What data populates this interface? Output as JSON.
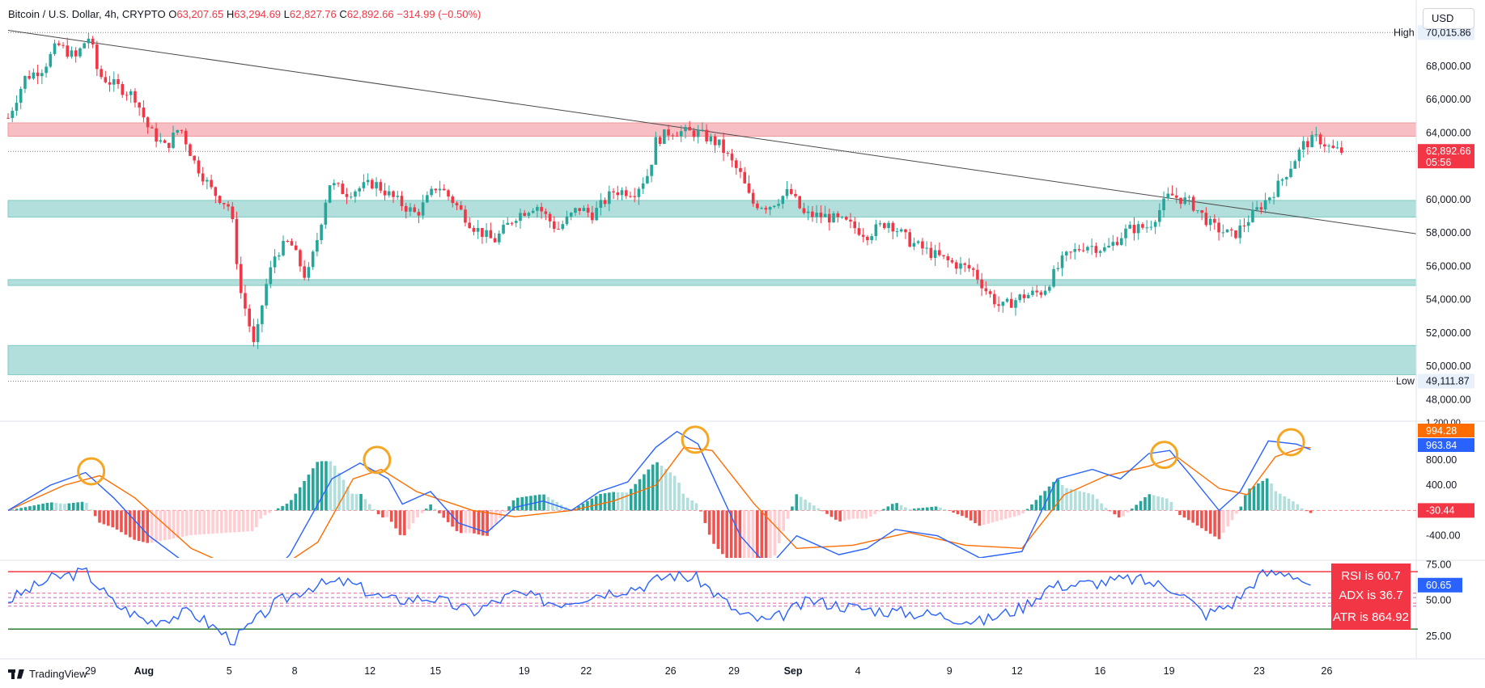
{
  "header": {
    "symbol": "Bitcoin / U.S. Dollar, 4h, CRYPTO",
    "open_label": "O",
    "open": "63,207.65",
    "high_label": "H",
    "high": "63,294.69",
    "low_label": "L",
    "low": "62,827.76",
    "close_label": "C",
    "close": "62,892.66",
    "change": "−314.99 (−0.50%)"
  },
  "currency_button": "USD",
  "watermark": "TradingView",
  "price_labels": {
    "high_text": "High",
    "high_value": "70,015.86",
    "low_text": "Low",
    "low_value": "49,111.87",
    "last_price": "62,892.66",
    "countdown": "05:56"
  },
  "indicator_labels": {
    "macd_signal": "994.28",
    "macd_line": "963.84",
    "macd_hist": "-30.44",
    "rsi_value": "60.65",
    "rsi_box": "RSI is 60.7",
    "adx_box": "ADX is 36.7",
    "atr_box": "ATR is 864.92"
  },
  "colors": {
    "up": "#26a69a",
    "down": "#f23645",
    "resistance_zone": "#f7bfc4",
    "support_zone": "#b2dfdb",
    "macd_line": "#2962ff",
    "signal_line": "#ff6d00",
    "rsi_line": "#2962ff",
    "highlight_circle": "#f5a623"
  },
  "chart_data": [
    {
      "type": "candlestick",
      "title": "Bitcoin / U.S. Dollar, 4h, CRYPTO",
      "x_ticks": [
        "29",
        "Aug",
        "5",
        "8",
        "12",
        "15",
        "19",
        "22",
        "26",
        "29",
        "Sep",
        "4",
        "9",
        "12",
        "16",
        "19",
        "23",
        "26"
      ],
      "y_ticks": [
        "70,015.86",
        "68,000.00",
        "66,000.00",
        "64,000.00",
        "62,892.66",
        "60,000.00",
        "58,000.00",
        "56,000.00",
        "54,000.00",
        "52,000.00",
        "50,000.00",
        "49,111.87",
        "48,000.00"
      ],
      "ylim": [
        47000,
        71000
      ],
      "high": 70015.86,
      "low": 49111.87,
      "last": 62892.66,
      "resistance_zone": [
        63800,
        64600
      ],
      "support_zones": [
        [
          58950,
          59950
        ],
        [
          54850,
          55200
        ],
        [
          49500,
          51250
        ]
      ],
      "trendline": [
        {
          "x": 0,
          "y": 70150
        },
        {
          "x": 1,
          "y": 57950
        }
      ],
      "close_path": [
        {
          "x": 0.0,
          "y": 64900
        },
        {
          "x": 0.012,
          "y": 67300
        },
        {
          "x": 0.025,
          "y": 67900
        },
        {
          "x": 0.035,
          "y": 69300
        },
        {
          "x": 0.048,
          "y": 68500
        },
        {
          "x": 0.054,
          "y": 69400
        },
        {
          "x": 0.058,
          "y": 69800
        },
        {
          "x": 0.064,
          "y": 67500
        },
        {
          "x": 0.075,
          "y": 66900
        },
        {
          "x": 0.09,
          "y": 66200
        },
        {
          "x": 0.1,
          "y": 64200
        },
        {
          "x": 0.112,
          "y": 63100
        },
        {
          "x": 0.122,
          "y": 64400
        },
        {
          "x": 0.132,
          "y": 62300
        },
        {
          "x": 0.145,
          "y": 60500
        },
        {
          "x": 0.158,
          "y": 59500
        },
        {
          "x": 0.165,
          "y": 54500
        },
        {
          "x": 0.17,
          "y": 53000
        },
        {
          "x": 0.175,
          "y": 51000
        },
        {
          "x": 0.182,
          "y": 54500
        },
        {
          "x": 0.19,
          "y": 56800
        },
        {
          "x": 0.2,
          "y": 57500
        },
        {
          "x": 0.212,
          "y": 55200
        },
        {
          "x": 0.22,
          "y": 57800
        },
        {
          "x": 0.228,
          "y": 61000
        },
        {
          "x": 0.24,
          "y": 60400
        },
        {
          "x": 0.26,
          "y": 61000
        },
        {
          "x": 0.275,
          "y": 60000
        },
        {
          "x": 0.29,
          "y": 59100
        },
        {
          "x": 0.305,
          "y": 60900
        },
        {
          "x": 0.315,
          "y": 60000
        },
        {
          "x": 0.33,
          "y": 58400
        },
        {
          "x": 0.345,
          "y": 57500
        },
        {
          "x": 0.36,
          "y": 59000
        },
        {
          "x": 0.375,
          "y": 59700
        },
        {
          "x": 0.39,
          "y": 58200
        },
        {
          "x": 0.405,
          "y": 59500
        },
        {
          "x": 0.415,
          "y": 59100
        },
        {
          "x": 0.43,
          "y": 60500
        },
        {
          "x": 0.445,
          "y": 60500
        },
        {
          "x": 0.455,
          "y": 61600
        },
        {
          "x": 0.46,
          "y": 63500
        },
        {
          "x": 0.47,
          "y": 64100
        },
        {
          "x": 0.49,
          "y": 64000
        },
        {
          "x": 0.505,
          "y": 63300
        },
        {
          "x": 0.52,
          "y": 61500
        },
        {
          "x": 0.528,
          "y": 59800
        },
        {
          "x": 0.54,
          "y": 59600
        },
        {
          "x": 0.555,
          "y": 60500
        },
        {
          "x": 0.565,
          "y": 59100
        },
        {
          "x": 0.58,
          "y": 59000
        },
        {
          "x": 0.595,
          "y": 58600
        },
        {
          "x": 0.61,
          "y": 57900
        },
        {
          "x": 0.625,
          "y": 58700
        },
        {
          "x": 0.64,
          "y": 57500
        },
        {
          "x": 0.655,
          "y": 56800
        },
        {
          "x": 0.67,
          "y": 56200
        },
        {
          "x": 0.685,
          "y": 55800
        },
        {
          "x": 0.695,
          "y": 54500
        },
        {
          "x": 0.705,
          "y": 53500
        },
        {
          "x": 0.72,
          "y": 54200
        },
        {
          "x": 0.735,
          "y": 54500
        },
        {
          "x": 0.75,
          "y": 56500
        },
        {
          "x": 0.765,
          "y": 57300
        },
        {
          "x": 0.78,
          "y": 57000
        },
        {
          "x": 0.795,
          "y": 58200
        },
        {
          "x": 0.81,
          "y": 58400
        },
        {
          "x": 0.825,
          "y": 60300
        },
        {
          "x": 0.84,
          "y": 59800
        },
        {
          "x": 0.855,
          "y": 58400
        },
        {
          "x": 0.87,
          "y": 57800
        },
        {
          "x": 0.885,
          "y": 59200
        },
        {
          "x": 0.9,
          "y": 60600
        },
        {
          "x": 0.91,
          "y": 61900
        },
        {
          "x": 0.92,
          "y": 63300
        },
        {
          "x": 0.93,
          "y": 63700
        },
        {
          "x": 0.94,
          "y": 63000
        },
        {
          "x": 0.947,
          "y": 62890
        }
      ]
    },
    {
      "type": "line",
      "title": "MACD",
      "y_ticks": [
        "800.00",
        "400.00",
        "-400.00"
      ],
      "ylim": [
        -750,
        1400
      ],
      "series": [
        {
          "values": [
            {
              "x": 0.0,
              "y": 0
            },
            {
              "x": 0.03,
              "y": 400
            },
            {
              "x": 0.055,
              "y": 600
            },
            {
              "x": 0.075,
              "y": 200
            },
            {
              "x": 0.1,
              "y": -400
            },
            {
              "x": 0.13,
              "y": -900
            },
            {
              "x": 0.175,
              "y": -1300
            },
            {
              "x": 0.2,
              "y": -700
            },
            {
              "x": 0.23,
              "y": 500
            },
            {
              "x": 0.25,
              "y": 750
            },
            {
              "x": 0.27,
              "y": 500
            },
            {
              "x": 0.28,
              "y": 100
            },
            {
              "x": 0.3,
              "y": 300
            },
            {
              "x": 0.32,
              "y": -200
            },
            {
              "x": 0.34,
              "y": -350
            },
            {
              "x": 0.36,
              "y": 50
            },
            {
              "x": 0.38,
              "y": 150
            },
            {
              "x": 0.4,
              "y": 0
            },
            {
              "x": 0.42,
              "y": 300
            },
            {
              "x": 0.44,
              "y": 450
            },
            {
              "x": 0.46,
              "y": 1000
            },
            {
              "x": 0.475,
              "y": 1250
            },
            {
              "x": 0.49,
              "y": 1050
            },
            {
              "x": 0.52,
              "y": -400
            },
            {
              "x": 0.54,
              "y": -900
            },
            {
              "x": 0.56,
              "y": -400
            },
            {
              "x": 0.59,
              "y": -700
            },
            {
              "x": 0.61,
              "y": -600
            },
            {
              "x": 0.63,
              "y": -300
            },
            {
              "x": 0.66,
              "y": -400
            },
            {
              "x": 0.69,
              "y": -750
            },
            {
              "x": 0.72,
              "y": -650
            },
            {
              "x": 0.745,
              "y": 500
            },
            {
              "x": 0.77,
              "y": 650
            },
            {
              "x": 0.79,
              "y": 500
            },
            {
              "x": 0.81,
              "y": 900
            },
            {
              "x": 0.825,
              "y": 950
            },
            {
              "x": 0.84,
              "y": 550
            },
            {
              "x": 0.86,
              "y": 0
            },
            {
              "x": 0.875,
              "y": 300
            },
            {
              "x": 0.895,
              "y": 1100
            },
            {
              "x": 0.915,
              "y": 1050
            },
            {
              "x": 0.925,
              "y": 963.84
            }
          ]
        },
        {
          "values": [
            {
              "x": 0.0,
              "y": 0
            },
            {
              "x": 0.04,
              "y": 400
            },
            {
              "x": 0.065,
              "y": 550
            },
            {
              "x": 0.09,
              "y": 200
            },
            {
              "x": 0.13,
              "y": -600
            },
            {
              "x": 0.18,
              "y": -1100
            },
            {
              "x": 0.22,
              "y": -500
            },
            {
              "x": 0.245,
              "y": 500
            },
            {
              "x": 0.265,
              "y": 650
            },
            {
              "x": 0.29,
              "y": 300
            },
            {
              "x": 0.33,
              "y": 0
            },
            {
              "x": 0.36,
              "y": -100
            },
            {
              "x": 0.4,
              "y": 0
            },
            {
              "x": 0.43,
              "y": 150
            },
            {
              "x": 0.46,
              "y": 400
            },
            {
              "x": 0.48,
              "y": 1000
            },
            {
              "x": 0.5,
              "y": 950
            },
            {
              "x": 0.53,
              "y": 100
            },
            {
              "x": 0.56,
              "y": -600
            },
            {
              "x": 0.6,
              "y": -550
            },
            {
              "x": 0.64,
              "y": -350
            },
            {
              "x": 0.68,
              "y": -550
            },
            {
              "x": 0.72,
              "y": -600
            },
            {
              "x": 0.75,
              "y": 250
            },
            {
              "x": 0.78,
              "y": 550
            },
            {
              "x": 0.81,
              "y": 700
            },
            {
              "x": 0.83,
              "y": 850
            },
            {
              "x": 0.86,
              "y": 350
            },
            {
              "x": 0.88,
              "y": 250
            },
            {
              "x": 0.9,
              "y": 850
            },
            {
              "x": 0.92,
              "y": 1000
            },
            {
              "x": 0.925,
              "y": 994.28
            }
          ]
        }
      ],
      "highlight_points": [
        {
          "x": 0.059,
          "y": 620
        },
        {
          "x": 0.262,
          "y": 800
        },
        {
          "x": 0.488,
          "y": 1120
        },
        {
          "x": 0.821,
          "y": 880
        },
        {
          "x": 0.911,
          "y": 1080
        }
      ]
    },
    {
      "type": "line",
      "title": "RSI",
      "y_ticks": [
        "75.00",
        "50.00",
        "25.00"
      ],
      "ylim": [
        12,
        78
      ],
      "levels": {
        "upper": 70,
        "lower": 30,
        "band_lines": [
          55,
          52,
          48,
          46
        ]
      },
      "values": [
        {
          "x": 0.0,
          "y": 50
        },
        {
          "x": 0.03,
          "y": 65
        },
        {
          "x": 0.055,
          "y": 70
        },
        {
          "x": 0.075,
          "y": 48
        },
        {
          "x": 0.1,
          "y": 35
        },
        {
          "x": 0.13,
          "y": 42
        },
        {
          "x": 0.16,
          "y": 22
        },
        {
          "x": 0.19,
          "y": 48
        },
        {
          "x": 0.215,
          "y": 60
        },
        {
          "x": 0.24,
          "y": 63
        },
        {
          "x": 0.27,
          "y": 50
        },
        {
          "x": 0.3,
          "y": 52
        },
        {
          "x": 0.33,
          "y": 42
        },
        {
          "x": 0.36,
          "y": 55
        },
        {
          "x": 0.39,
          "y": 48
        },
        {
          "x": 0.42,
          "y": 55
        },
        {
          "x": 0.45,
          "y": 60
        },
        {
          "x": 0.47,
          "y": 68
        },
        {
          "x": 0.49,
          "y": 65
        },
        {
          "x": 0.52,
          "y": 40
        },
        {
          "x": 0.54,
          "y": 35
        },
        {
          "x": 0.57,
          "y": 50
        },
        {
          "x": 0.6,
          "y": 45
        },
        {
          "x": 0.63,
          "y": 42
        },
        {
          "x": 0.66,
          "y": 40
        },
        {
          "x": 0.69,
          "y": 35
        },
        {
          "x": 0.72,
          "y": 45
        },
        {
          "x": 0.74,
          "y": 60
        },
        {
          "x": 0.77,
          "y": 62
        },
        {
          "x": 0.8,
          "y": 65
        },
        {
          "x": 0.83,
          "y": 58
        },
        {
          "x": 0.85,
          "y": 40
        },
        {
          "x": 0.87,
          "y": 48
        },
        {
          "x": 0.89,
          "y": 68
        },
        {
          "x": 0.91,
          "y": 70
        },
        {
          "x": 0.925,
          "y": 60.65
        }
      ]
    }
  ]
}
